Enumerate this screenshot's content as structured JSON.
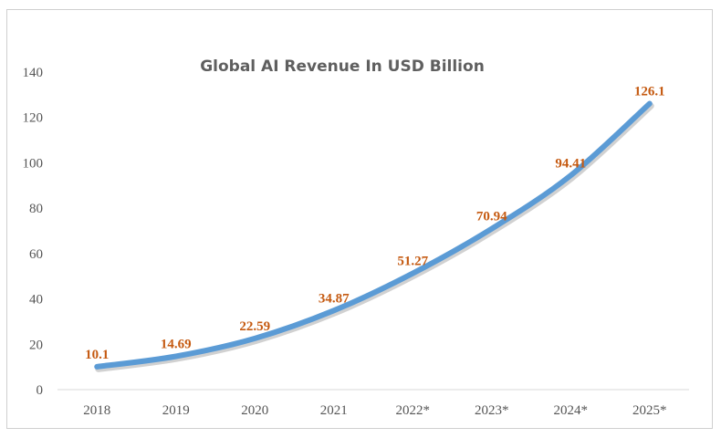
{
  "chart_data": {
    "type": "line",
    "title": "Global AI Revenue In USD Billion",
    "xlabel": "",
    "ylabel": "",
    "categories": [
      "2018",
      "2019",
      "2020",
      "2021",
      "2022*",
      "2023*",
      "2024*",
      "2025*"
    ],
    "series": [
      {
        "values": [
          10.1,
          14.69,
          22.59,
          34.87,
          51.27,
          70.94,
          94.41,
          126.1
        ],
        "color": "#5b9bd5",
        "label_color": "#c55a11"
      }
    ],
    "data_labels": [
      "10.1",
      "14.69",
      "22.59",
      "34.87",
      "51.27",
      "70.94",
      "94.41",
      "126.1"
    ],
    "ylim": [
      0,
      140
    ],
    "y_ticks": [
      0,
      20,
      40,
      60,
      80,
      100,
      120,
      140
    ],
    "grid": false,
    "legend": "none"
  }
}
